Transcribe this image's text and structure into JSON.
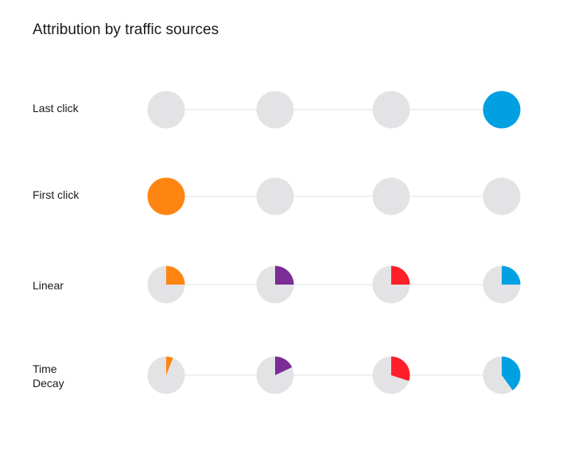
{
  "title": "Attribution by traffic sources",
  "colors": {
    "inactive": "#e3e3e5",
    "connector": "#e0e0e2",
    "touchpoints": [
      "#ff8512",
      "#7a2d96",
      "#ff1f2a",
      "#00a0e3"
    ]
  },
  "models": [
    {
      "label": "Last click",
      "shares": [
        0,
        0,
        0,
        1
      ]
    },
    {
      "label": "First click",
      "shares": [
        1,
        0,
        0,
        0
      ]
    },
    {
      "label": "Linear",
      "shares": [
        0.25,
        0.25,
        0.25,
        0.25
      ]
    },
    {
      "label": "Time\nDecay",
      "shares": [
        0.06,
        0.18,
        0.3,
        0.4
      ]
    }
  ]
}
